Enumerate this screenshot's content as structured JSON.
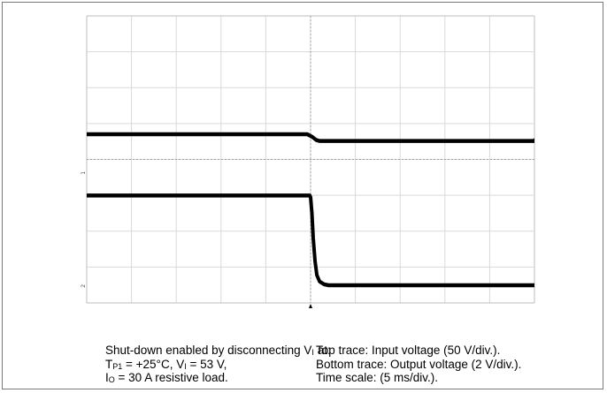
{
  "chart_data": {
    "type": "line",
    "x_unit": "ms",
    "x_per_div": 5,
    "x_divisions": 10,
    "xlim": [
      -25,
      25
    ],
    "trigger_x": 0,
    "grid": true,
    "series": [
      {
        "channel_marker": "1",
        "volts_per_div": 50,
        "ground_level_div": 3.65,
        "x": [
          -25,
          -0.4,
          0.2,
          0.6,
          1,
          25
        ],
        "y": [
          53,
          53,
          49,
          45,
          43.5,
          43.5
        ]
      },
      {
        "channel_marker": "2",
        "volts_per_div": 2,
        "ground_level_div": 0.5,
        "x": [
          -25,
          -0.1,
          0.0,
          0.15,
          0.3,
          0.5,
          0.7,
          1,
          1.5,
          2,
          3,
          25
        ],
        "y": [
          5.0,
          5.0,
          4.9,
          4.0,
          2.6,
          1.3,
          0.55,
          0.2,
          0.05,
          0.0,
          0.0,
          0.0
        ]
      }
    ]
  },
  "caption_left": {
    "line1_a": "Shut-down enabled by disconnecting V",
    "line1_sub": "I",
    "line1_b": " at:",
    "line2_a": "T",
    "line2_sub": "P1",
    "line2_b": " = +25°C, V",
    "line2_sub2": "I",
    "line2_c": " = 53 V,",
    "line3_a": "I",
    "line3_sub": "O",
    "line3_b": " = 30 A resistive load."
  },
  "caption_right": {
    "line1": "Top trace: Input voltage (50 V/div.).",
    "line2": "Bottom trace: Output voltage (2 V/div.).",
    "line3": "Time scale: (5 ms/div.)."
  }
}
